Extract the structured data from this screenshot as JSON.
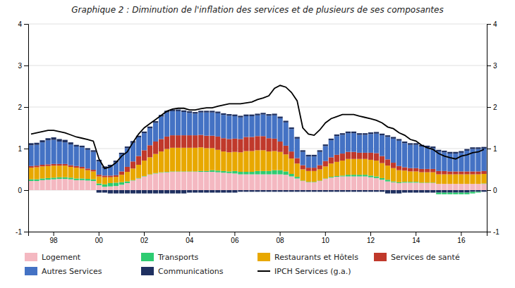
{
  "chart_data": {
    "type": "bar",
    "title": "Graphique 2 : Diminution de l'inflation des services et de plusieurs de ses composantes",
    "stacked": true,
    "grid": true,
    "legend": "bottom",
    "categories": [
      null,
      null,
      null,
      null,
      "98",
      null,
      null,
      null,
      null,
      null,
      null,
      null,
      "00",
      null,
      null,
      null,
      null,
      null,
      null,
      null,
      "02",
      null,
      null,
      null,
      null,
      null,
      null,
      null,
      "04",
      null,
      null,
      null,
      null,
      null,
      null,
      null,
      "06",
      null,
      null,
      null,
      null,
      null,
      null,
      null,
      "08",
      null,
      null,
      null,
      null,
      null,
      null,
      null,
      "10",
      null,
      null,
      null,
      null,
      null,
      null,
      null,
      "12",
      null,
      null,
      null,
      null,
      null,
      null,
      null,
      "14",
      null,
      null,
      null,
      null,
      null,
      null,
      null,
      "16",
      null,
      null,
      null,
      null
    ],
    "ylim": [
      -1,
      4
    ],
    "yticks": [
      -1,
      0,
      1,
      2,
      3,
      4
    ],
    "y2lim": [
      -1,
      4
    ],
    "y2ticks": [
      -1,
      0,
      1,
      2,
      3,
      4
    ],
    "series": [
      {
        "name": "Logement",
        "color": "#f4b8c1",
        "values": [
          0.22,
          0.22,
          0.24,
          0.25,
          0.26,
          0.27,
          0.27,
          0.26,
          0.24,
          0.24,
          0.23,
          0.22,
          0.12,
          0.08,
          0.09,
          0.1,
          0.13,
          0.17,
          0.23,
          0.28,
          0.33,
          0.37,
          0.4,
          0.42,
          0.43,
          0.44,
          0.44,
          0.44,
          0.44,
          0.44,
          0.44,
          0.44,
          0.44,
          0.43,
          0.42,
          0.41,
          0.4,
          0.38,
          0.38,
          0.38,
          0.38,
          0.38,
          0.38,
          0.38,
          0.38,
          0.37,
          0.33,
          0.28,
          0.22,
          0.19,
          0.19,
          0.22,
          0.27,
          0.3,
          0.32,
          0.33,
          0.33,
          0.33,
          0.33,
          0.33,
          0.31,
          0.29,
          0.25,
          0.21,
          0.19,
          0.17,
          0.18,
          0.18,
          0.18,
          0.17,
          0.17,
          0.17,
          0.15,
          0.15,
          0.15,
          0.15,
          0.15,
          0.15,
          0.15,
          0.15,
          0.15
        ]
      },
      {
        "name": "Transports",
        "color": "#2ecc71",
        "values": [
          0.04,
          0.04,
          0.04,
          0.04,
          0.04,
          0.04,
          0.04,
          0.04,
          0.04,
          0.04,
          0.04,
          0.04,
          0.04,
          0.06,
          0.08,
          0.08,
          0.06,
          0.04,
          0.01,
          0.01,
          0.01,
          0.01,
          0.01,
          0.01,
          0.01,
          0.01,
          0.01,
          0.01,
          0.01,
          0.01,
          0.02,
          0.02,
          0.04,
          0.04,
          0.04,
          0.04,
          0.06,
          0.06,
          0.06,
          0.06,
          0.08,
          0.08,
          0.08,
          0.1,
          0.1,
          0.08,
          0.06,
          0.04,
          0.01,
          0.01,
          0.01,
          0.01,
          0.01,
          0.02,
          0.02,
          0.02,
          0.04,
          0.04,
          0.04,
          0.04,
          0.04,
          0.04,
          0.04,
          0.04,
          0.02,
          0.02,
          0.02,
          0.02,
          0.02,
          0.01,
          0.01,
          0.01,
          -0.04,
          -0.04,
          -0.04,
          -0.04,
          -0.04,
          -0.04,
          -0.04,
          -0.02,
          0.01
        ]
      },
      {
        "name": "Restaurants et Hôtels",
        "color": "#e8a800",
        "values": [
          0.28,
          0.29,
          0.29,
          0.29,
          0.29,
          0.28,
          0.28,
          0.26,
          0.26,
          0.24,
          0.21,
          0.19,
          0.17,
          0.17,
          0.14,
          0.14,
          0.18,
          0.23,
          0.28,
          0.32,
          0.37,
          0.41,
          0.46,
          0.5,
          0.55,
          0.57,
          0.57,
          0.57,
          0.57,
          0.57,
          0.57,
          0.55,
          0.53,
          0.5,
          0.47,
          0.46,
          0.46,
          0.47,
          0.5,
          0.5,
          0.5,
          0.5,
          0.47,
          0.46,
          0.44,
          0.41,
          0.37,
          0.32,
          0.27,
          0.26,
          0.26,
          0.27,
          0.29,
          0.32,
          0.34,
          0.36,
          0.38,
          0.38,
          0.38,
          0.38,
          0.38,
          0.38,
          0.36,
          0.34,
          0.32,
          0.29,
          0.27,
          0.25,
          0.25,
          0.25,
          0.25,
          0.25,
          0.23,
          0.23,
          0.23,
          0.23,
          0.23,
          0.23,
          0.23,
          0.23,
          0.23
        ]
      },
      {
        "name": "Services de santé",
        "color": "#c0392b",
        "values": [
          0.04,
          0.04,
          0.04,
          0.04,
          0.04,
          0.04,
          0.04,
          0.04,
          0.04,
          0.04,
          0.04,
          0.04,
          0.04,
          0.04,
          0.04,
          0.04,
          0.08,
          0.12,
          0.17,
          0.21,
          0.25,
          0.29,
          0.3,
          0.3,
          0.3,
          0.3,
          0.3,
          0.3,
          0.3,
          0.3,
          0.3,
          0.3,
          0.3,
          0.32,
          0.32,
          0.32,
          0.32,
          0.32,
          0.34,
          0.34,
          0.34,
          0.34,
          0.32,
          0.3,
          0.25,
          0.21,
          0.17,
          0.13,
          0.1,
          0.08,
          0.08,
          0.1,
          0.13,
          0.15,
          0.17,
          0.17,
          0.17,
          0.17,
          0.15,
          0.15,
          0.17,
          0.18,
          0.17,
          0.15,
          0.13,
          0.1,
          0.08,
          0.08,
          0.08,
          0.08,
          0.08,
          0.08,
          0.08,
          0.08,
          0.07,
          0.07,
          0.07,
          0.07,
          0.07,
          0.07,
          0.07
        ]
      },
      {
        "name": "Autres Services",
        "color": "#4472c4",
        "values": [
          0.5,
          0.5,
          0.54,
          0.58,
          0.58,
          0.54,
          0.52,
          0.5,
          0.47,
          0.47,
          0.45,
          0.43,
          0.32,
          0.18,
          0.22,
          0.31,
          0.41,
          0.45,
          0.45,
          0.45,
          0.41,
          0.41,
          0.45,
          0.54,
          0.58,
          0.58,
          0.58,
          0.56,
          0.54,
          0.52,
          0.54,
          0.56,
          0.56,
          0.56,
          0.56,
          0.56,
          0.54,
          0.52,
          0.5,
          0.5,
          0.5,
          0.52,
          0.54,
          0.56,
          0.56,
          0.56,
          0.54,
          0.47,
          0.32,
          0.27,
          0.27,
          0.32,
          0.36,
          0.41,
          0.45,
          0.45,
          0.45,
          0.45,
          0.43,
          0.43,
          0.45,
          0.47,
          0.5,
          0.54,
          0.58,
          0.61,
          0.58,
          0.56,
          0.56,
          0.54,
          0.52,
          0.5,
          0.47,
          0.45,
          0.43,
          0.43,
          0.45,
          0.5,
          0.54,
          0.54,
          0.54
        ]
      },
      {
        "name": "Communications",
        "color": "#1f3060",
        "values": [
          0.05,
          0.05,
          0.05,
          0.05,
          0.06,
          0.06,
          0.06,
          0.05,
          0.04,
          0.04,
          0.04,
          0.04,
          0.04,
          0.04,
          0.04,
          0.04,
          0.04,
          0.04,
          0.04,
          0.04,
          0.04,
          0.04,
          0.04,
          0.04,
          0.04,
          0.04,
          0.04,
          0.04,
          0.04,
          0.04,
          0.04,
          0.04,
          0.04,
          0.04,
          0.04,
          0.04,
          0.04,
          0.04,
          0.04,
          0.04,
          0.04,
          0.04,
          0.04,
          0.04,
          0.04,
          0.04,
          0.04,
          0.04,
          0.04,
          0.04,
          0.04,
          0.04,
          0.04,
          0.04,
          0.04,
          0.04,
          0.04,
          0.04,
          0.04,
          0.04,
          0.04,
          0.04,
          0.04,
          0.04,
          0.04,
          0.04,
          0.04,
          0.04,
          0.04,
          0.04,
          0.04,
          0.04,
          0.04,
          0.04,
          0.04,
          0.04,
          0.04,
          0.04,
          0.04,
          0.04,
          0.04
        ]
      },
      {
        "name": "Communications",
        "color": "#1f3060",
        "values": [
          0.0,
          0.0,
          0.0,
          0.0,
          0.0,
          0.0,
          0.0,
          0.0,
          0.0,
          0.0,
          0.0,
          0.0,
          -0.06,
          -0.06,
          -0.08,
          -0.08,
          -0.08,
          -0.08,
          -0.08,
          -0.08,
          -0.08,
          -0.08,
          -0.08,
          -0.08,
          -0.08,
          -0.08,
          -0.08,
          -0.08,
          -0.06,
          -0.06,
          -0.06,
          -0.06,
          -0.06,
          -0.06,
          -0.06,
          -0.06,
          -0.06,
          -0.04,
          -0.04,
          -0.04,
          -0.04,
          -0.04,
          -0.04,
          -0.04,
          -0.04,
          -0.04,
          -0.04,
          -0.04,
          -0.04,
          -0.04,
          -0.04,
          -0.04,
          -0.04,
          -0.04,
          -0.04,
          -0.04,
          -0.04,
          -0.04,
          -0.04,
          -0.04,
          -0.04,
          -0.04,
          -0.04,
          -0.08,
          -0.08,
          -0.08,
          -0.06,
          -0.06,
          -0.06,
          -0.06,
          -0.06,
          -0.06,
          -0.06,
          -0.06,
          -0.06,
          -0.06,
          -0.06,
          -0.06,
          -0.04,
          -0.04,
          -0.04
        ]
      },
      {
        "name": "IPCH Services (g.a.)",
        "type": "line",
        "color": "#000000",
        "values": [
          1.35,
          1.38,
          1.41,
          1.44,
          1.44,
          1.41,
          1.38,
          1.33,
          1.28,
          1.25,
          1.22,
          1.18,
          0.75,
          0.52,
          0.56,
          0.66,
          0.82,
          0.92,
          1.15,
          1.35,
          1.5,
          1.6,
          1.7,
          1.8,
          1.9,
          1.95,
          1.97,
          1.97,
          1.93,
          1.93,
          1.96,
          1.98,
          1.98,
          2.02,
          2.05,
          2.08,
          2.08,
          2.08,
          2.1,
          2.12,
          2.18,
          2.22,
          2.27,
          2.45,
          2.52,
          2.48,
          2.35,
          2.15,
          1.5,
          1.35,
          1.32,
          1.45,
          1.62,
          1.72,
          1.77,
          1.82,
          1.82,
          1.82,
          1.78,
          1.75,
          1.72,
          1.68,
          1.62,
          1.52,
          1.48,
          1.38,
          1.32,
          1.22,
          1.18,
          1.08,
          1.02,
          0.98,
          0.88,
          0.82,
          0.78,
          0.75,
          0.82,
          0.85,
          0.9,
          0.92,
          0.98
        ]
      }
    ]
  }
}
